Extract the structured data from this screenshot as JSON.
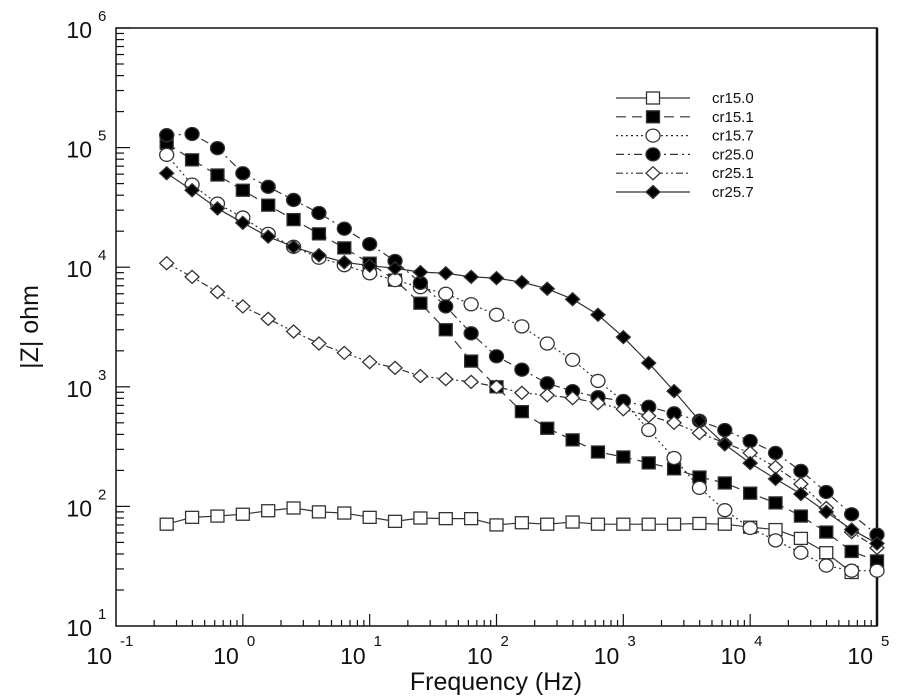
{
  "chart_data": {
    "type": "line",
    "title": "",
    "xlabel": "Frequency (Hz)",
    "ylabel": "|Z| ohm",
    "xscale": "log",
    "yscale": "log",
    "xlim": [
      0.1,
      100000
    ],
    "ylim": [
      10,
      1000000
    ],
    "x_ticks": [
      {
        "base": "10",
        "exp": "-1"
      },
      {
        "base": "10",
        "exp": "0"
      },
      {
        "base": "10",
        "exp": "1"
      },
      {
        "base": "10",
        "exp": "2"
      },
      {
        "base": "10",
        "exp": "3"
      },
      {
        "base": "10",
        "exp": "4"
      },
      {
        "base": "10",
        "exp": "5"
      }
    ],
    "y_ticks": [
      {
        "base": "10",
        "exp": "1"
      },
      {
        "base": "10",
        "exp": "2"
      },
      {
        "base": "10",
        "exp": "3"
      },
      {
        "base": "10",
        "exp": "4"
      },
      {
        "base": "10",
        "exp": "5"
      },
      {
        "base": "10",
        "exp": "6"
      }
    ],
    "grid": false,
    "legend_position": "top-right",
    "x": [
      0.251,
      0.398,
      0.631,
      1,
      1.585,
      2.512,
      3.981,
      6.31,
      10,
      15.85,
      25.12,
      39.81,
      63.1,
      100,
      158.5,
      251.2,
      398.1,
      631,
      1000,
      1585,
      2512,
      3981,
      6310,
      10000,
      15850,
      25120,
      39810,
      63100,
      100000
    ],
    "series": [
      {
        "name": "cr15.0",
        "marker": "square-open",
        "line": "solid",
        "values": [
          71,
          81,
          83,
          86,
          92,
          97,
          90,
          88,
          81,
          75,
          80,
          79,
          79,
          70,
          73,
          71,
          74,
          71,
          71,
          71,
          71,
          72,
          71,
          67,
          64,
          54,
          41,
          28,
          null
        ]
      },
      {
        "name": "cr15.1",
        "marker": "square-filled",
        "line": "dashed",
        "values": [
          109000,
          79000,
          59000,
          44000,
          33000,
          25000,
          19000,
          14500,
          10800,
          7800,
          5000,
          3000,
          1640,
          1000,
          620,
          450,
          360,
          285,
          259,
          231,
          206,
          176,
          157,
          129,
          107,
          83,
          61,
          42,
          35
        ]
      },
      {
        "name": "cr15.7",
        "marker": "circle-open",
        "line": "dotted",
        "values": [
          87000,
          49000,
          34000,
          26000,
          19000,
          14800,
          12000,
          10400,
          8900,
          7800,
          6800,
          6000,
          4900,
          4000,
          3200,
          2300,
          1680,
          1120,
          760,
          435,
          254,
          143,
          93,
          66,
          52,
          41,
          32,
          29,
          29
        ]
      },
      {
        "name": "cr25.0",
        "marker": "circle-filled",
        "line": "dash-dot",
        "values": [
          127000,
          130000,
          99000,
          61000,
          47000,
          36500,
          28400,
          21000,
          15600,
          11300,
          7400,
          4700,
          2800,
          1800,
          1390,
          1070,
          920,
          820,
          760,
          680,
          600,
          520,
          435,
          352,
          280,
          198,
          132,
          86,
          58
        ]
      },
      {
        "name": "cr25.1",
        "marker": "diamond-open",
        "line": "dash-dot-dot",
        "values": [
          10800,
          8300,
          6200,
          4700,
          3700,
          2900,
          2300,
          1920,
          1610,
          1440,
          1230,
          1160,
          1100,
          1000,
          890,
          850,
          805,
          730,
          650,
          570,
          500,
          410,
          340,
          280,
          213,
          154,
          97,
          61,
          45
        ]
      },
      {
        "name": "cr25.7",
        "marker": "diamond-filled",
        "line": "solid",
        "values": [
          61000,
          44000,
          31000,
          23500,
          18000,
          14800,
          12600,
          11000,
          10300,
          9800,
          9100,
          8900,
          8300,
          8100,
          7500,
          6600,
          5400,
          4000,
          2600,
          1580,
          920,
          520,
          330,
          230,
          170,
          127,
          90,
          64,
          49
        ]
      }
    ]
  }
}
